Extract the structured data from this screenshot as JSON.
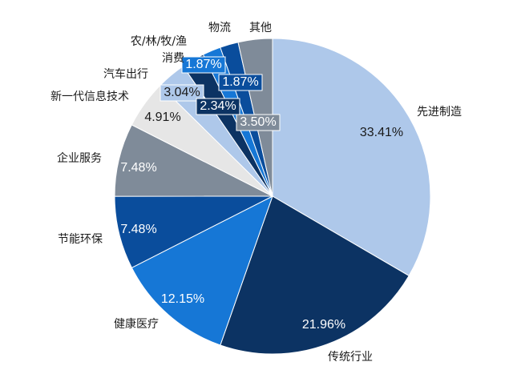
{
  "chart_data": {
    "type": "pie",
    "title": "",
    "slices": [
      {
        "label": "先进制造",
        "value": 33.41,
        "value_text": "33.41%",
        "color": "#aec8ea",
        "text_color": "#1a1a1a",
        "label_box": null
      },
      {
        "label": "传统行业",
        "value": 21.96,
        "value_text": "21.96%",
        "color": "#0c3363",
        "text_color": "#ffffff",
        "label_box": null
      },
      {
        "label": "健康医疗",
        "value": 12.15,
        "value_text": "12.15%",
        "color": "#1677d6",
        "text_color": "#ffffff",
        "label_box": null
      },
      {
        "label": "节能环保",
        "value": 7.48,
        "value_text": "7.48%",
        "color": "#0a4d9c",
        "text_color": "#ffffff",
        "label_box": null
      },
      {
        "label": "企业服务",
        "value": 7.48,
        "value_text": "7.48%",
        "color": "#7f8b99",
        "text_color": "#ffffff",
        "label_box": null
      },
      {
        "label": "新一代信息技术",
        "value": 4.91,
        "value_text": "4.91%",
        "color": "#e6e6e6",
        "text_color": "#1a1a1a",
        "label_box": null
      },
      {
        "label": "汽车出行",
        "value": 3.04,
        "value_text": "3.04%",
        "color": "#aec8ea",
        "text_color": "#1a1a1a",
        "label_box": "#aec8ea"
      },
      {
        "label": "消费",
        "value": 2.34,
        "value_text": "2.34%",
        "color": "#0c3363",
        "text_color": "#ffffff",
        "label_box": "#0c3363"
      },
      {
        "label": "农/林/牧/渔",
        "value": 1.87,
        "value_text": "1.87%",
        "color": "#1677d6",
        "text_color": "#ffffff",
        "label_box": "#1677d6"
      },
      {
        "label": "物流",
        "value": 1.87,
        "value_text": "1.87%",
        "color": "#0a4d9c",
        "text_color": "#ffffff",
        "label_box": "#0a4d9c"
      },
      {
        "label": "其他",
        "value": 3.5,
        "value_text": "3.50%",
        "color": "#7f8b99",
        "text_color": "#ffffff",
        "label_box": "#7f8b99"
      }
    ],
    "start_angle": "12 o'clock",
    "direction": "clockwise",
    "legend": "none"
  }
}
